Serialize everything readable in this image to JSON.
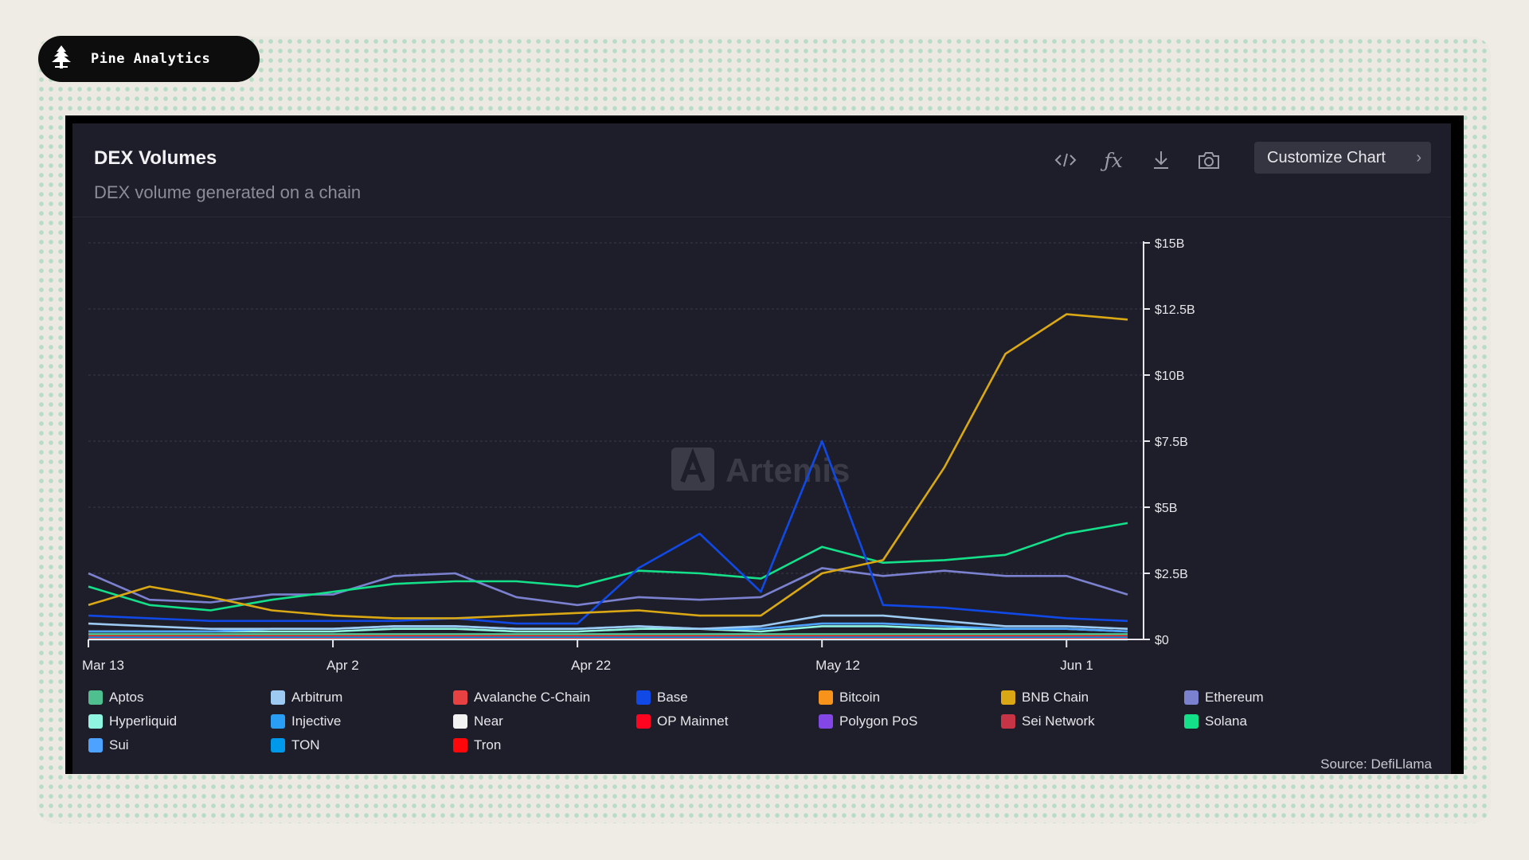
{
  "brand": {
    "name": "Pine Analytics",
    "icon": "pine-tree-icon"
  },
  "header": {
    "title": "DEX Volumes",
    "subtitle": "DEX volume generated on a chain",
    "customize_label": "Customize Chart",
    "tools": [
      "embed-code-icon",
      "formula-icon",
      "download-icon",
      "camera-icon"
    ]
  },
  "watermark": "Artemis",
  "source": "Source: DefiLlama",
  "chart_data": {
    "type": "line",
    "title": "DEX Volumes",
    "subtitle": "DEX volume generated on a chain",
    "x_ticks": [
      "Mar 13",
      "Apr 2",
      "Apr 22",
      "May 12",
      "Jun 1"
    ],
    "y_ticks": [
      "$0",
      "$2.5B",
      "$5B",
      "$7.5B",
      "$10B",
      "$12.5B",
      "$15B"
    ],
    "ylim": [
      0,
      15
    ],
    "y_unit": "$B",
    "grid": true,
    "legend_position": "bottom",
    "x": [
      "2025-03-13",
      "2025-03-18",
      "2025-03-23",
      "2025-03-28",
      "2025-04-02",
      "2025-04-07",
      "2025-04-12",
      "2025-04-17",
      "2025-04-22",
      "2025-04-27",
      "2025-05-02",
      "2025-05-07",
      "2025-05-12",
      "2025-05-17",
      "2025-05-22",
      "2025-05-27",
      "2025-06-01",
      "2025-06-06"
    ],
    "series": [
      {
        "name": "Aptos",
        "color": "#4fbf8f",
        "values": [
          0.2,
          0.2,
          0.2,
          0.2,
          0.2,
          0.2,
          0.2,
          0.2,
          0.2,
          0.2,
          0.2,
          0.2,
          0.2,
          0.2,
          0.2,
          0.2,
          0.2,
          0.2
        ]
      },
      {
        "name": "Arbitrum",
        "color": "#9ccaf2",
        "values": [
          0.6,
          0.5,
          0.4,
          0.4,
          0.4,
          0.5,
          0.5,
          0.4,
          0.4,
          0.5,
          0.4,
          0.5,
          0.9,
          0.9,
          0.7,
          0.5,
          0.5,
          0.4
        ]
      },
      {
        "name": "Avalanche C-Chain",
        "color": "#e84142",
        "values": [
          0.1,
          0.1,
          0.1,
          0.1,
          0.1,
          0.1,
          0.1,
          0.1,
          0.1,
          0.1,
          0.1,
          0.1,
          0.1,
          0.1,
          0.1,
          0.1,
          0.1,
          0.1
        ]
      },
      {
        "name": "Base",
        "color": "#1049e6",
        "values": [
          0.9,
          0.8,
          0.7,
          0.7,
          0.7,
          0.7,
          0.8,
          0.6,
          0.6,
          2.7,
          4.0,
          1.8,
          7.5,
          1.3,
          1.2,
          1.0,
          0.8,
          0.7
        ]
      },
      {
        "name": "Bitcoin",
        "color": "#f7931a",
        "values": [
          0,
          0,
          0,
          0,
          0,
          0,
          0,
          0,
          0,
          0,
          0,
          0,
          0,
          0,
          0,
          0,
          0,
          0
        ]
      },
      {
        "name": "BNB Chain",
        "color": "#d9a814",
        "values": [
          1.3,
          2.0,
          1.6,
          1.1,
          0.9,
          0.8,
          0.8,
          0.9,
          1.0,
          1.1,
          0.9,
          0.9,
          2.5,
          3.0,
          6.5,
          10.8,
          12.3,
          12.1
        ]
      },
      {
        "name": "Ethereum",
        "color": "#7b81cf",
        "values": [
          2.5,
          1.5,
          1.4,
          1.7,
          1.7,
          2.4,
          2.5,
          1.6,
          1.3,
          1.6,
          1.5,
          1.6,
          2.7,
          2.4,
          2.6,
          2.4,
          2.4,
          1.7
        ]
      },
      {
        "name": "Hyperliquid",
        "color": "#8ff5e0",
        "values": [
          0.3,
          0.3,
          0.3,
          0.3,
          0.3,
          0.4,
          0.4,
          0.3,
          0.3,
          0.4,
          0.4,
          0.3,
          0.5,
          0.5,
          0.4,
          0.4,
          0.4,
          0.3
        ]
      },
      {
        "name": "Injective",
        "color": "#2a9df4",
        "values": [
          0,
          0,
          0,
          0,
          0,
          0,
          0,
          0,
          0,
          0,
          0,
          0,
          0,
          0,
          0,
          0,
          0,
          0
        ]
      },
      {
        "name": "Near",
        "color": "#f2f2f2",
        "values": [
          0.05,
          0.05,
          0.05,
          0.05,
          0.05,
          0.05,
          0.05,
          0.05,
          0.05,
          0.05,
          0.05,
          0.05,
          0.05,
          0.05,
          0.05,
          0.05,
          0.05,
          0.05
        ]
      },
      {
        "name": "OP Mainnet",
        "color": "#ff0420",
        "values": [
          0.05,
          0.05,
          0.05,
          0.05,
          0.05,
          0.05,
          0.05,
          0.05,
          0.05,
          0.05,
          0.05,
          0.05,
          0.05,
          0.05,
          0.05,
          0.05,
          0.05,
          0.05
        ]
      },
      {
        "name": "Polygon PoS",
        "color": "#8247e5",
        "values": [
          0.1,
          0.1,
          0.1,
          0.1,
          0.1,
          0.1,
          0.1,
          0.1,
          0.1,
          0.1,
          0.1,
          0.1,
          0.1,
          0.1,
          0.1,
          0.1,
          0.1,
          0.1
        ]
      },
      {
        "name": "Sei Network",
        "color": "#c53545",
        "values": [
          0.05,
          0.05,
          0.05,
          0.05,
          0.05,
          0.05,
          0.05,
          0.05,
          0.05,
          0.05,
          0.05,
          0.05,
          0.05,
          0.05,
          0.05,
          0.05,
          0.05,
          0.05
        ]
      },
      {
        "name": "Solana",
        "color": "#14e08a",
        "values": [
          2.0,
          1.3,
          1.1,
          1.5,
          1.8,
          2.1,
          2.2,
          2.2,
          2.0,
          2.6,
          2.5,
          2.3,
          3.5,
          2.9,
          3.0,
          3.2,
          4.0,
          4.4
        ]
      },
      {
        "name": "Sui",
        "color": "#4da2ff",
        "values": [
          0.3,
          0.3,
          0.3,
          0.4,
          0.4,
          0.5,
          0.5,
          0.4,
          0.4,
          0.5,
          0.4,
          0.4,
          0.6,
          0.6,
          0.5,
          0.4,
          0.4,
          0.3
        ]
      },
      {
        "name": "TON",
        "color": "#0098ea",
        "values": [
          0.1,
          0.1,
          0.1,
          0.1,
          0.1,
          0.1,
          0.1,
          0.1,
          0.1,
          0.1,
          0.1,
          0.1,
          0.1,
          0.1,
          0.1,
          0.1,
          0.1,
          0.1
        ]
      },
      {
        "name": "Tron",
        "color": "#ff060a",
        "values": [
          0.15,
          0.15,
          0.15,
          0.15,
          0.15,
          0.15,
          0.15,
          0.15,
          0.15,
          0.15,
          0.15,
          0.15,
          0.15,
          0.15,
          0.15,
          0.15,
          0.15,
          0.15
        ]
      }
    ]
  }
}
